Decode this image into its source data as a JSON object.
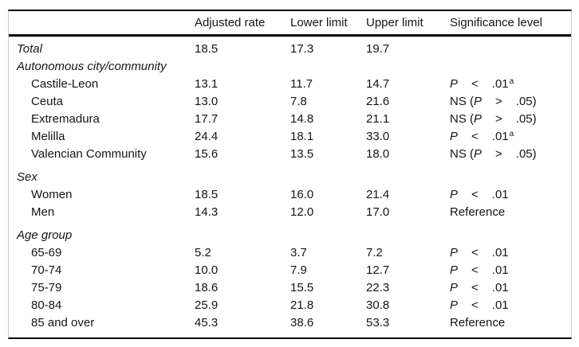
{
  "table": {
    "p_symbol": "P",
    "headers": [
      "",
      "Adjusted rate",
      "Lower limit",
      "Upper limit",
      "Significance level"
    ],
    "rows": [
      {
        "label": "Total",
        "italic": true,
        "indent": false,
        "spacer": false,
        "values": [
          "18.5",
          "17.3",
          "19.7"
        ],
        "sig": null
      },
      {
        "label": "Autonomous city/community",
        "italic": true,
        "indent": false,
        "spacer": false,
        "values": null,
        "sig": null
      },
      {
        "label": "Castile-Leon",
        "italic": false,
        "indent": true,
        "spacer": false,
        "values": [
          "13.1",
          "11.7",
          "14.7"
        ],
        "sig": {
          "pre": "",
          "op": "<",
          "val": ".01",
          "sup": "a"
        }
      },
      {
        "label": "Ceuta",
        "italic": false,
        "indent": true,
        "spacer": false,
        "values": [
          "13.0",
          "7.8",
          "21.6"
        ],
        "sig": {
          "pre": "NS (",
          "op": ">",
          "val": ".05)",
          "sup": ""
        }
      },
      {
        "label": "Extremadura",
        "italic": false,
        "indent": true,
        "spacer": false,
        "values": [
          "17.7",
          "14.8",
          "21.1"
        ],
        "sig": {
          "pre": "NS (",
          "op": ">",
          "val": ".05)",
          "sup": ""
        }
      },
      {
        "label": "Melilla",
        "italic": false,
        "indent": true,
        "spacer": false,
        "values": [
          "24.4",
          "18.1",
          "33.0"
        ],
        "sig": {
          "pre": "",
          "op": "<",
          "val": ".01",
          "sup": "a"
        }
      },
      {
        "label": "Valencian Community",
        "italic": false,
        "indent": true,
        "spacer": false,
        "values": [
          "15.6",
          "13.5",
          "18.0"
        ],
        "sig": {
          "pre": "NS (",
          "op": ">",
          "val": ".05)",
          "sup": ""
        }
      },
      {
        "label": "Sex",
        "italic": true,
        "indent": false,
        "spacer": true,
        "values": null,
        "sig": null
      },
      {
        "label": "Women",
        "italic": false,
        "indent": true,
        "spacer": false,
        "values": [
          "18.5",
          "16.0",
          "21.4"
        ],
        "sig": {
          "pre": "",
          "op": "<",
          "val": ".01",
          "sup": ""
        }
      },
      {
        "label": "Men",
        "italic": false,
        "indent": true,
        "spacer": false,
        "values": [
          "14.3",
          "12.0",
          "17.0"
        ],
        "sig": {
          "text": "Reference"
        }
      },
      {
        "label": "Age group",
        "italic": true,
        "indent": false,
        "spacer": true,
        "values": null,
        "sig": null
      },
      {
        "label": "65-69",
        "italic": false,
        "indent": true,
        "spacer": false,
        "values": [
          "5.2",
          "3.7",
          "7.2"
        ],
        "sig": {
          "pre": "",
          "op": "<",
          "val": ".01",
          "sup": ""
        }
      },
      {
        "label": "70-74",
        "italic": false,
        "indent": true,
        "spacer": false,
        "values": [
          "10.0",
          "7.9",
          "12.7"
        ],
        "sig": {
          "pre": "",
          "op": "<",
          "val": ".01",
          "sup": ""
        }
      },
      {
        "label": "75-79",
        "italic": false,
        "indent": true,
        "spacer": false,
        "values": [
          "18.6",
          "15.5",
          "22.3"
        ],
        "sig": {
          "pre": "",
          "op": "<",
          "val": ".01",
          "sup": ""
        }
      },
      {
        "label": "80-84",
        "italic": false,
        "indent": true,
        "spacer": false,
        "values": [
          "25.9",
          "21.8",
          "30.8"
        ],
        "sig": {
          "pre": "",
          "op": "<",
          "val": ".01",
          "sup": ""
        }
      },
      {
        "label": "85 and over",
        "italic": false,
        "indent": true,
        "spacer": false,
        "values": [
          "45.3",
          "38.6",
          "53.3"
        ],
        "sig": {
          "text": "Reference"
        }
      }
    ],
    "colors": {
      "text": "#151515",
      "rule": "#000000",
      "side_border": "#c9c9c9",
      "background": "#ffffff"
    }
  }
}
